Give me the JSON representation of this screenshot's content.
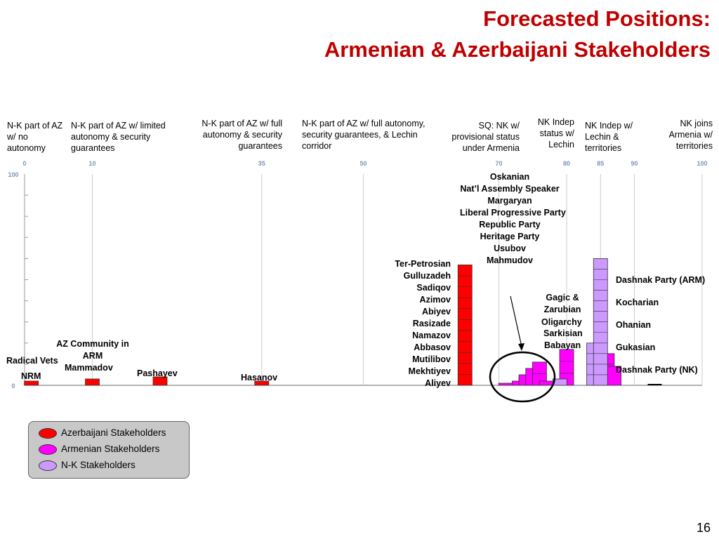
{
  "title_line1": "Forecasted Positions:",
  "title_line2": "Armenian & Azerbaijani Stakeholders",
  "positions": [
    "N-K part of AZ w/ no autonomy",
    "N-K part of AZ w/ limited autonomy & security guarantees",
    "N-K part of AZ w/ full autonomy & security guarantees",
    "N-K part of AZ w/ full autonomy, security guarantees, & Lechin corridor",
    "SQ: NK w/ provisional status under Armenia",
    "NK Indep status w/ Lechin",
    "NK Indep w/ Lechin & territories",
    "NK joins Armenia w/ territories"
  ],
  "labels": {
    "radical_vets": "Radical Vets",
    "nrm": "NRM",
    "az_community": "AZ Community in ARM",
    "mammadov": "Mammadov",
    "pashayev": "Pashayev",
    "hasanov": "Hasanov",
    "gagic": "Gagic & Zarubian",
    "oligarchy": "Oligarchy",
    "sarkisian": "Sarkisian",
    "babayan": "Babayan"
  },
  "stack_az": [
    "Ter-Petrosian",
    "Gulluzadeh",
    "Sadiqov",
    "Azimov",
    "Abiyev",
    "Rasizade",
    "Namazov",
    "Abbasov",
    "Mutilibov",
    "Mekhtiyev",
    "Aliyev"
  ],
  "stack_arm": [
    "Oskanian",
    "Nat’l Assembly Speaker",
    "Margaryan",
    "Liberal Progressive Party",
    "Republic Party",
    "Heritage Party",
    "Usubov",
    "Mahmudov"
  ],
  "stack_nk": [
    "Dashnak Party (ARM)",
    "Kocharian",
    "Ohanian",
    "Gukasian",
    "Dashnak Party (NK)"
  ],
  "legend": {
    "az": "Azerbaijani Stakeholders",
    "arm": "Armenian Stakeholders",
    "nk": "N-K Stakeholders"
  },
  "page_number": "16",
  "colors": {
    "az": "#ff0000",
    "arm": "#ff00ff",
    "nk": "#cc99ff",
    "title": "#c00000"
  },
  "chart_data": {
    "type": "bar",
    "title": "Forecasted Positions: Armenian & Azerbaijani Stakeholders",
    "x_ticks": [
      0,
      10,
      35,
      50,
      70,
      80,
      85,
      90,
      100
    ],
    "y_ticks": [
      0,
      100
    ],
    "xlim": [
      0,
      100
    ],
    "ylim": [
      0,
      100
    ],
    "series": [
      {
        "name": "Azerbaijani Stakeholders",
        "group": "az",
        "bars": [
          {
            "x": 1,
            "h": 2
          },
          {
            "x": 10,
            "h": 3
          },
          {
            "x": 20,
            "h": 4
          },
          {
            "x": 35,
            "h": 2
          },
          {
            "x": 65,
            "h": 57
          },
          {
            "x": 74,
            "h": 4
          },
          {
            "x": 75,
            "h": 3
          }
        ]
      },
      {
        "name": "Armenian Stakeholders",
        "group": "arm",
        "bars": [
          {
            "x": 71,
            "h": 1
          },
          {
            "x": 73,
            "h": 2
          },
          {
            "x": 74,
            "h": 5
          },
          {
            "x": 75,
            "h": 8
          },
          {
            "x": 76,
            "h": 11
          },
          {
            "x": 77,
            "h": 2
          },
          {
            "x": 80,
            "h": 17
          },
          {
            "x": 86,
            "h": 15
          },
          {
            "x": 87,
            "h": 9
          }
        ]
      },
      {
        "name": "N-K Stakeholders",
        "group": "nk",
        "bars": [
          {
            "x": 79,
            "h": 3
          },
          {
            "x": 84,
            "h": 20
          },
          {
            "x": 85,
            "h": 60
          }
        ]
      }
    ]
  }
}
